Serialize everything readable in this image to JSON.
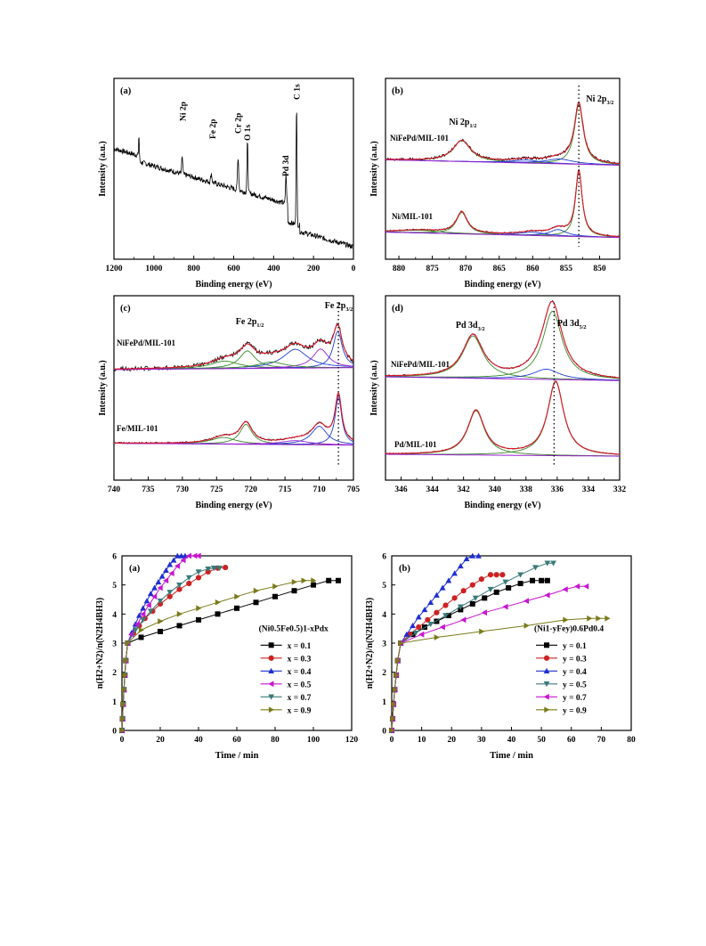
{
  "xps_figure": {
    "panels": [
      {
        "letter": "(a)",
        "xlabel": "Binding energy (eV)",
        "ylabel": "Intensity (a.u.)",
        "xticks": [
          "1200",
          "1000",
          "800",
          "600",
          "400",
          "200",
          "0"
        ],
        "peak_labels": [
          "Ni 2p",
          "Fe 2p",
          "Cr 2p",
          "O 1s",
          "Pd 3d",
          "C 1s"
        ]
      },
      {
        "letter": "(b)",
        "xlabel": "Binding energy (eV)",
        "ylabel": "Intensity (a.u.)",
        "xticks": [
          "880",
          "875",
          "870",
          "865",
          "860",
          "855",
          "850"
        ],
        "peak_labels": [
          "Ni 2p1/2",
          "Ni 2p3/2"
        ],
        "trace_labels": [
          "NiFePd/MIL-101",
          "Ni/MIL-101"
        ]
      },
      {
        "letter": "(c)",
        "xlabel": "Binding energy (eV)",
        "ylabel": "Intensity (a.u.)",
        "xticks": [
          "740",
          "735",
          "730",
          "725",
          "720",
          "715",
          "710",
          "705"
        ],
        "peak_labels": [
          "Fe 2p1/2",
          "Fe 2p3/2"
        ],
        "trace_labels": [
          "NiFePd/MIL-101",
          "Fe/MIL-101"
        ]
      },
      {
        "letter": "(d)",
        "xlabel": "Binding energy (eV)",
        "ylabel": "Intensity (a.u.)",
        "xticks": [
          "346",
          "344",
          "342",
          "340",
          "338",
          "336",
          "334",
          "332"
        ],
        "peak_labels": [
          "Pd 3d3/2",
          "Pd 3d5/2"
        ],
        "trace_labels": [
          "NiFePd/MIL-101",
          "Pd/MIL-101"
        ]
      }
    ]
  },
  "chart_data": [
    {
      "type": "line",
      "panel": "(a)",
      "xlabel": "Time / min",
      "ylabel": "n(H2+N2)/n(N2H4BH3)",
      "xlim": [
        0,
        120
      ],
      "ylim": [
        0,
        6
      ],
      "xticks": [
        "0",
        "20",
        "40",
        "60",
        "80",
        "100",
        "120"
      ],
      "yticks": [
        "0",
        "1",
        "2",
        "3",
        "4",
        "5",
        "6"
      ],
      "legend_title": "(Ni0.5Fe0.5)1-xPdx",
      "legend_position": "right",
      "series": [
        {
          "name": "x = 0.1",
          "color": "#000000",
          "marker": "square",
          "x": [
            0,
            0.3,
            0.6,
            1.0,
            1.5,
            2.0,
            3,
            10,
            20,
            30,
            40,
            50,
            60,
            70,
            80,
            90,
            100,
            108,
            113
          ],
          "y": [
            0,
            0.4,
            0.9,
            1.4,
            1.9,
            2.4,
            3.0,
            3.2,
            3.4,
            3.6,
            3.8,
            4.0,
            4.2,
            4.4,
            4.6,
            4.8,
            5.0,
            5.15,
            5.15
          ]
        },
        {
          "name": "x = 0.3",
          "color": "#cc2222",
          "marker": "circle",
          "x": [
            0,
            0.3,
            0.6,
            1.0,
            1.5,
            2.0,
            3,
            6,
            9,
            12,
            16,
            20,
            25,
            30,
            35,
            40,
            45,
            50,
            54
          ],
          "y": [
            0,
            0.4,
            0.9,
            1.4,
            1.9,
            2.4,
            3.0,
            3.35,
            3.6,
            3.85,
            4.1,
            4.35,
            4.6,
            4.85,
            5.05,
            5.25,
            5.45,
            5.58,
            5.6
          ]
        },
        {
          "name": "x = 0.4",
          "color": "#1f2fd0",
          "marker": "triangle-up",
          "x": [
            0,
            0.3,
            0.6,
            1.0,
            1.5,
            2.0,
            3,
            5,
            7,
            9,
            11,
            13,
            15,
            17,
            19,
            21,
            23,
            25,
            27,
            29,
            31,
            33
          ],
          "y": [
            0,
            0.4,
            0.9,
            1.4,
            1.9,
            2.4,
            3.0,
            3.35,
            3.65,
            3.95,
            4.2,
            4.45,
            4.7,
            4.9,
            5.1,
            5.3,
            5.5,
            5.7,
            5.85,
            6.0,
            6.0,
            6.0
          ]
        },
        {
          "name": "x = 0.5",
          "color": "#c814d2",
          "marker": "triangle-left",
          "x": [
            0,
            0.3,
            0.6,
            1.0,
            1.5,
            2.0,
            3,
            5,
            8,
            11,
            14,
            17,
            20,
            23,
            26,
            29,
            32,
            35,
            38,
            40
          ],
          "y": [
            0,
            0.4,
            0.9,
            1.4,
            1.9,
            2.4,
            3.0,
            3.3,
            3.65,
            4.0,
            4.3,
            4.6,
            4.9,
            5.15,
            5.4,
            5.65,
            5.85,
            6.0,
            6.0,
            6.0
          ]
        },
        {
          "name": "x = 0.7",
          "color": "#3a7a7a",
          "marker": "triangle-down",
          "x": [
            0,
            0.3,
            0.6,
            1.0,
            1.5,
            2.0,
            3,
            7,
            11,
            15,
            20,
            25,
            30,
            35,
            40,
            45,
            48,
            51
          ],
          "y": [
            0,
            0.4,
            0.9,
            1.4,
            1.9,
            2.4,
            3.0,
            3.45,
            3.8,
            4.1,
            4.45,
            4.75,
            5.0,
            5.25,
            5.45,
            5.55,
            5.58,
            5.58
          ]
        },
        {
          "name": "x = 0.9",
          "color": "#7a7a1a",
          "marker": "triangle-right",
          "x": [
            0,
            0.3,
            0.6,
            1.0,
            1.5,
            2.0,
            3,
            10,
            20,
            30,
            40,
            50,
            60,
            70,
            80,
            90,
            95,
            100
          ],
          "y": [
            0,
            0.4,
            0.9,
            1.4,
            1.9,
            2.4,
            3.0,
            3.45,
            3.75,
            4.0,
            4.2,
            4.4,
            4.6,
            4.8,
            4.95,
            5.1,
            5.15,
            5.15
          ]
        }
      ]
    },
    {
      "type": "line",
      "panel": "(b)",
      "xlabel": "Time / min",
      "ylabel": "n(H2+N2)/n(N2H4BH3)",
      "xlim": [
        0,
        80
      ],
      "ylim": [
        0,
        6
      ],
      "xticks": [
        "0",
        "10",
        "20",
        "30",
        "40",
        "50",
        "60",
        "70",
        "80"
      ],
      "yticks": [
        "0",
        "1",
        "2",
        "3",
        "4",
        "5",
        "6"
      ],
      "legend_title": "(Ni1-yFey)0.6Pd0.4",
      "legend_position": "right",
      "series": [
        {
          "name": "y = 0.1",
          "color": "#000000",
          "marker": "square",
          "x": [
            0,
            0.3,
            0.6,
            1.0,
            1.5,
            2.0,
            3,
            7,
            11,
            15,
            19,
            23,
            27,
            31,
            35,
            39,
            43,
            47,
            50,
            52
          ],
          "y": [
            0,
            0.4,
            0.9,
            1.4,
            1.9,
            2.4,
            3.0,
            3.3,
            3.55,
            3.75,
            3.95,
            4.15,
            4.35,
            4.55,
            4.75,
            4.9,
            5.05,
            5.15,
            5.15,
            5.15
          ]
        },
        {
          "name": "y = 0.3",
          "color": "#cc2222",
          "marker": "circle",
          "x": [
            0,
            0.3,
            0.6,
            1.0,
            1.5,
            2.0,
            3,
            6,
            9,
            12,
            15,
            18,
            21,
            24,
            27,
            30,
            33,
            35,
            37
          ],
          "y": [
            0,
            0.4,
            0.9,
            1.4,
            1.9,
            2.4,
            3.0,
            3.3,
            3.55,
            3.8,
            4.05,
            4.3,
            4.55,
            4.8,
            5.0,
            5.2,
            5.35,
            5.35,
            5.35
          ]
        },
        {
          "name": "y = 0.4",
          "color": "#1f2fd0",
          "marker": "triangle-up",
          "x": [
            0,
            0.3,
            0.6,
            1.0,
            1.5,
            2.0,
            3,
            5,
            7,
            9,
            11,
            13,
            15,
            17,
            19,
            21,
            23,
            25,
            27,
            29
          ],
          "y": [
            0,
            0.4,
            0.9,
            1.4,
            1.9,
            2.4,
            3.0,
            3.3,
            3.6,
            3.9,
            4.15,
            4.4,
            4.65,
            4.9,
            5.15,
            5.4,
            5.65,
            5.9,
            6.0,
            6.0
          ]
        },
        {
          "name": "y = 0.5",
          "color": "#3a7a7a",
          "marker": "triangle-down",
          "x": [
            0,
            0.3,
            0.6,
            1.0,
            1.5,
            2.0,
            3,
            8,
            13,
            18,
            23,
            28,
            33,
            38,
            43,
            48,
            52,
            54
          ],
          "y": [
            0,
            0.4,
            0.9,
            1.4,
            1.9,
            2.4,
            3.0,
            3.35,
            3.65,
            3.95,
            4.25,
            4.55,
            4.85,
            5.1,
            5.35,
            5.6,
            5.75,
            5.75
          ]
        },
        {
          "name": "y = 0.7",
          "color": "#c814d2",
          "marker": "triangle-left",
          "x": [
            0,
            0.3,
            0.6,
            1.0,
            1.5,
            2.0,
            3,
            10,
            17,
            24,
            31,
            38,
            45,
            52,
            58,
            62,
            65
          ],
          "y": [
            0,
            0.4,
            0.9,
            1.4,
            1.9,
            2.4,
            3.0,
            3.3,
            3.55,
            3.8,
            4.05,
            4.25,
            4.45,
            4.65,
            4.85,
            4.95,
            4.95
          ]
        },
        {
          "name": "y = 0.9",
          "color": "#7a7a1a",
          "marker": "triangle-right",
          "x": [
            0,
            0.3,
            0.6,
            1.0,
            1.5,
            2.0,
            3,
            15,
            30,
            45,
            58,
            66,
            69,
            72
          ],
          "y": [
            0,
            0.4,
            0.9,
            1.4,
            1.9,
            2.4,
            3.0,
            3.2,
            3.4,
            3.6,
            3.8,
            3.85,
            3.85,
            3.85
          ]
        }
      ]
    }
  ]
}
